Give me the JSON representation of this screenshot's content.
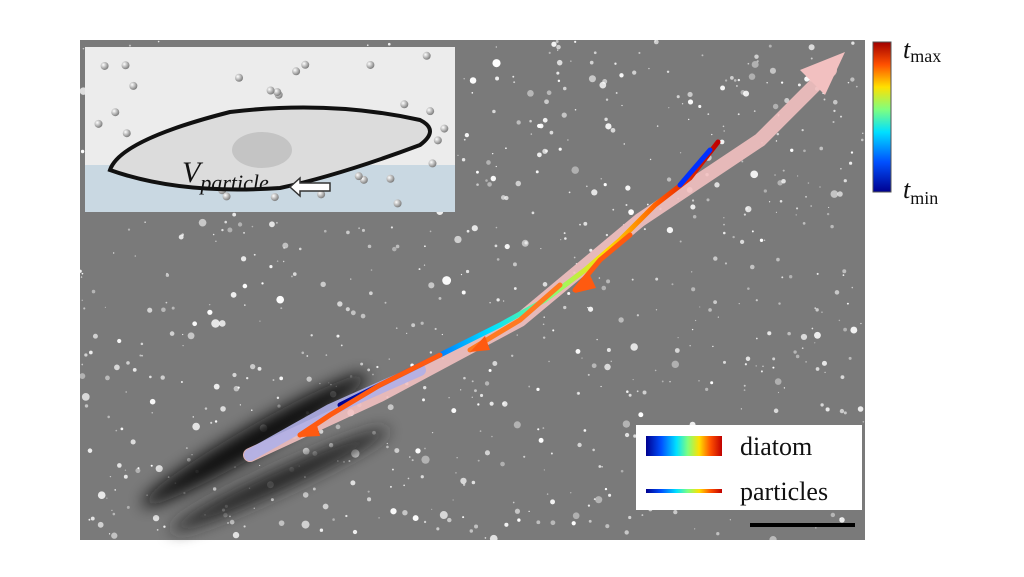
{
  "colorbar": {
    "max": {
      "symbol": "t",
      "subscript": "max"
    },
    "min": {
      "symbol": "t",
      "subscript": "min"
    }
  },
  "inset": {
    "label": {
      "symbol": "V",
      "subscript": "particle"
    }
  },
  "legend": {
    "items": [
      "diatom",
      "particles"
    ]
  }
}
